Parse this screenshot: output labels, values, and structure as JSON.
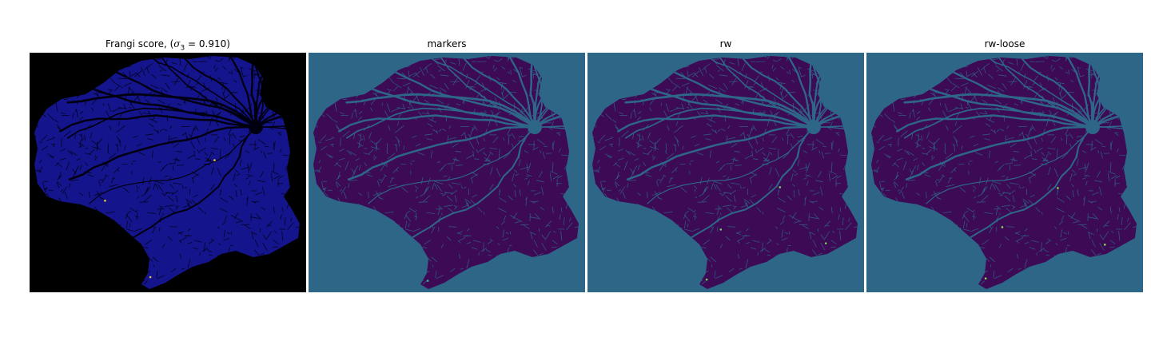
{
  "figure": {
    "panels": [
      {
        "title_prefix": "Frangi score, (",
        "title_math": "σ",
        "title_sub": "3",
        "title_suffix": " = 0.910)",
        "background": "#000000",
        "tissue": "#14148c",
        "vessel": "#000010",
        "accent": "#f0c040"
      },
      {
        "title": "markers",
        "background": "#2e6688",
        "tissue": "#3d0a55",
        "vessel": "#2e6688",
        "accent": "#38b890"
      },
      {
        "title": "rw",
        "background": "#2e6688",
        "tissue": "#3d0a55",
        "vessel": "#2e6688",
        "accent": "#7ad060"
      },
      {
        "title": "rw-loose",
        "background": "#2e6688",
        "tissue": "#3d0a55",
        "vessel": "#2e6688",
        "accent": "#8ad858"
      }
    ]
  }
}
